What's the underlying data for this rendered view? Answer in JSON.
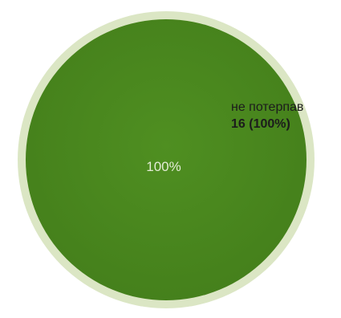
{
  "chart_data": {
    "type": "pie",
    "slices": [
      {
        "label": "не потерпав",
        "value": 16,
        "percent_label": "100%",
        "legend_value": "16 (100%)",
        "color": "#4b8a1f"
      }
    ],
    "ring_color": "#dbe6c4",
    "title": "",
    "legend": "inside-right"
  }
}
